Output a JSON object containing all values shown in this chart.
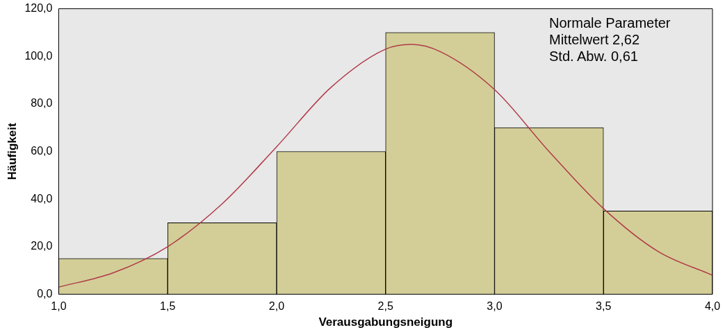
{
  "chart_data": {
    "type": "histogram",
    "xlabel": "Verausgabungsneigung",
    "ylabel": "Häufigkeit",
    "bins": [
      1.0,
      1.5,
      2.0,
      2.5,
      3.0,
      3.5,
      4.0
    ],
    "values": [
      15,
      30,
      60,
      110,
      70,
      35
    ],
    "color": "#d3ce97",
    "series": [
      {
        "type": "line",
        "color": "#b03a48",
        "x": [
          1.0,
          1.25,
          1.5,
          1.75,
          2.0,
          2.25,
          2.5,
          2.62,
          2.75,
          3.0,
          3.25,
          3.5,
          3.75,
          4.0
        ],
        "values": [
          3,
          9,
          20,
          38,
          62,
          87,
          103,
          105,
          102,
          86,
          60,
          36,
          18,
          8
        ]
      }
    ],
    "xlim": [
      1.0,
      4.0
    ],
    "xticks": [
      {
        "value": 1.0,
        "label": "1,0"
      },
      {
        "value": 1.5,
        "label": "1,5"
      },
      {
        "value": 2.0,
        "label": "2,0"
      },
      {
        "value": 2.5,
        "label": "2,5"
      },
      {
        "value": 3.0,
        "label": "3,0"
      },
      {
        "value": 3.5,
        "label": "3,5"
      },
      {
        "value": 4.0,
        "label": "4,0"
      }
    ],
    "ylim": [
      0,
      120
    ],
    "yticks": [
      {
        "value": 0,
        "label": "0,0"
      },
      {
        "value": 20,
        "label": "20,0"
      },
      {
        "value": 40,
        "label": "40,0"
      },
      {
        "value": 60,
        "label": "60,0"
      },
      {
        "value": 80,
        "label": "80,0"
      },
      {
        "value": 100,
        "label": "100,0"
      },
      {
        "value": 120,
        "label": "120,0"
      }
    ],
    "annotations": [
      "Normale Parameter",
      "Mittelwert 2,62",
      "Std. Abw. 0,61"
    ],
    "grid": false,
    "legend": false
  }
}
